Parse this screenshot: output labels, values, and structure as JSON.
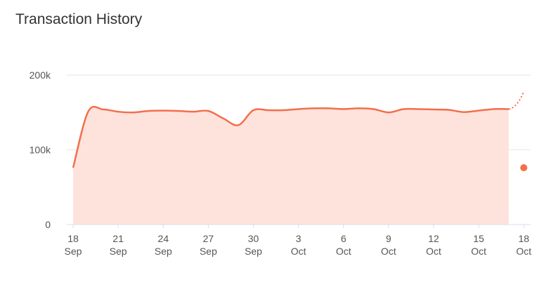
{
  "colors": {
    "line": "#f36f4c",
    "area": "#fde3dc",
    "grid": "#e6e6e6",
    "axis": "#d7dfee"
  },
  "chart_data": {
    "type": "area",
    "title": "Transaction History",
    "xlabel": "",
    "ylabel": "",
    "ylim": [
      0,
      200000
    ],
    "grid": true,
    "y_ticks": [
      {
        "value": 0,
        "label": "0"
      },
      {
        "value": 100000,
        "label": "100k"
      },
      {
        "value": 200000,
        "label": "200k"
      }
    ],
    "x_ticks": [
      {
        "date": "2023-09-18",
        "day": "18",
        "month": "Sep"
      },
      {
        "date": "2023-09-21",
        "day": "21",
        "month": "Sep"
      },
      {
        "date": "2023-09-24",
        "day": "24",
        "month": "Sep"
      },
      {
        "date": "2023-09-27",
        "day": "27",
        "month": "Sep"
      },
      {
        "date": "2023-09-30",
        "day": "30",
        "month": "Sep"
      },
      {
        "date": "2023-10-03",
        "day": "3",
        "month": "Oct"
      },
      {
        "date": "2023-10-06",
        "day": "6",
        "month": "Oct"
      },
      {
        "date": "2023-10-09",
        "day": "9",
        "month": "Oct"
      },
      {
        "date": "2023-10-12",
        "day": "12",
        "month": "Oct"
      },
      {
        "date": "2023-10-15",
        "day": "15",
        "month": "Oct"
      },
      {
        "date": "2023-10-18",
        "day": "18",
        "month": "Oct"
      }
    ],
    "series": [
      {
        "points": [
          {
            "x": "2023-09-18",
            "y": 76000
          },
          {
            "x": "2023-09-19",
            "y": 151000
          },
          {
            "x": "2023-09-20",
            "y": 154000
          },
          {
            "x": "2023-09-21",
            "y": 151000
          },
          {
            "x": "2023-09-22",
            "y": 150000
          },
          {
            "x": "2023-09-23",
            "y": 152000
          },
          {
            "x": "2023-09-24",
            "y": 152500
          },
          {
            "x": "2023-09-25",
            "y": 152000
          },
          {
            "x": "2023-09-26",
            "y": 151000
          },
          {
            "x": "2023-09-27",
            "y": 152000
          },
          {
            "x": "2023-09-28",
            "y": 142000
          },
          {
            "x": "2023-09-29",
            "y": 133000
          },
          {
            "x": "2023-09-30",
            "y": 153000
          },
          {
            "x": "2023-10-01",
            "y": 153000
          },
          {
            "x": "2023-10-02",
            "y": 153000
          },
          {
            "x": "2023-10-03",
            "y": 154500
          },
          {
            "x": "2023-10-04",
            "y": 155500
          },
          {
            "x": "2023-10-05",
            "y": 155500
          },
          {
            "x": "2023-10-06",
            "y": 154500
          },
          {
            "x": "2023-10-07",
            "y": 155500
          },
          {
            "x": "2023-10-08",
            "y": 154500
          },
          {
            "x": "2023-10-09",
            "y": 150000
          },
          {
            "x": "2023-10-10",
            "y": 154500
          },
          {
            "x": "2023-10-11",
            "y": 154500
          },
          {
            "x": "2023-10-12",
            "y": 154000
          },
          {
            "x": "2023-10-13",
            "y": 153500
          },
          {
            "x": "2023-10-14",
            "y": 150500
          },
          {
            "x": "2023-10-15",
            "y": 152500
          },
          {
            "x": "2023-10-16",
            "y": 154500
          },
          {
            "x": "2023-10-17",
            "y": 154500
          }
        ],
        "projection": [
          {
            "x": "2023-10-17",
            "y": 154500
          },
          {
            "x": "2023-10-18",
            "y": 178000
          }
        ],
        "marker": {
          "x": "2023-10-18",
          "y": 76000
        }
      }
    ]
  }
}
